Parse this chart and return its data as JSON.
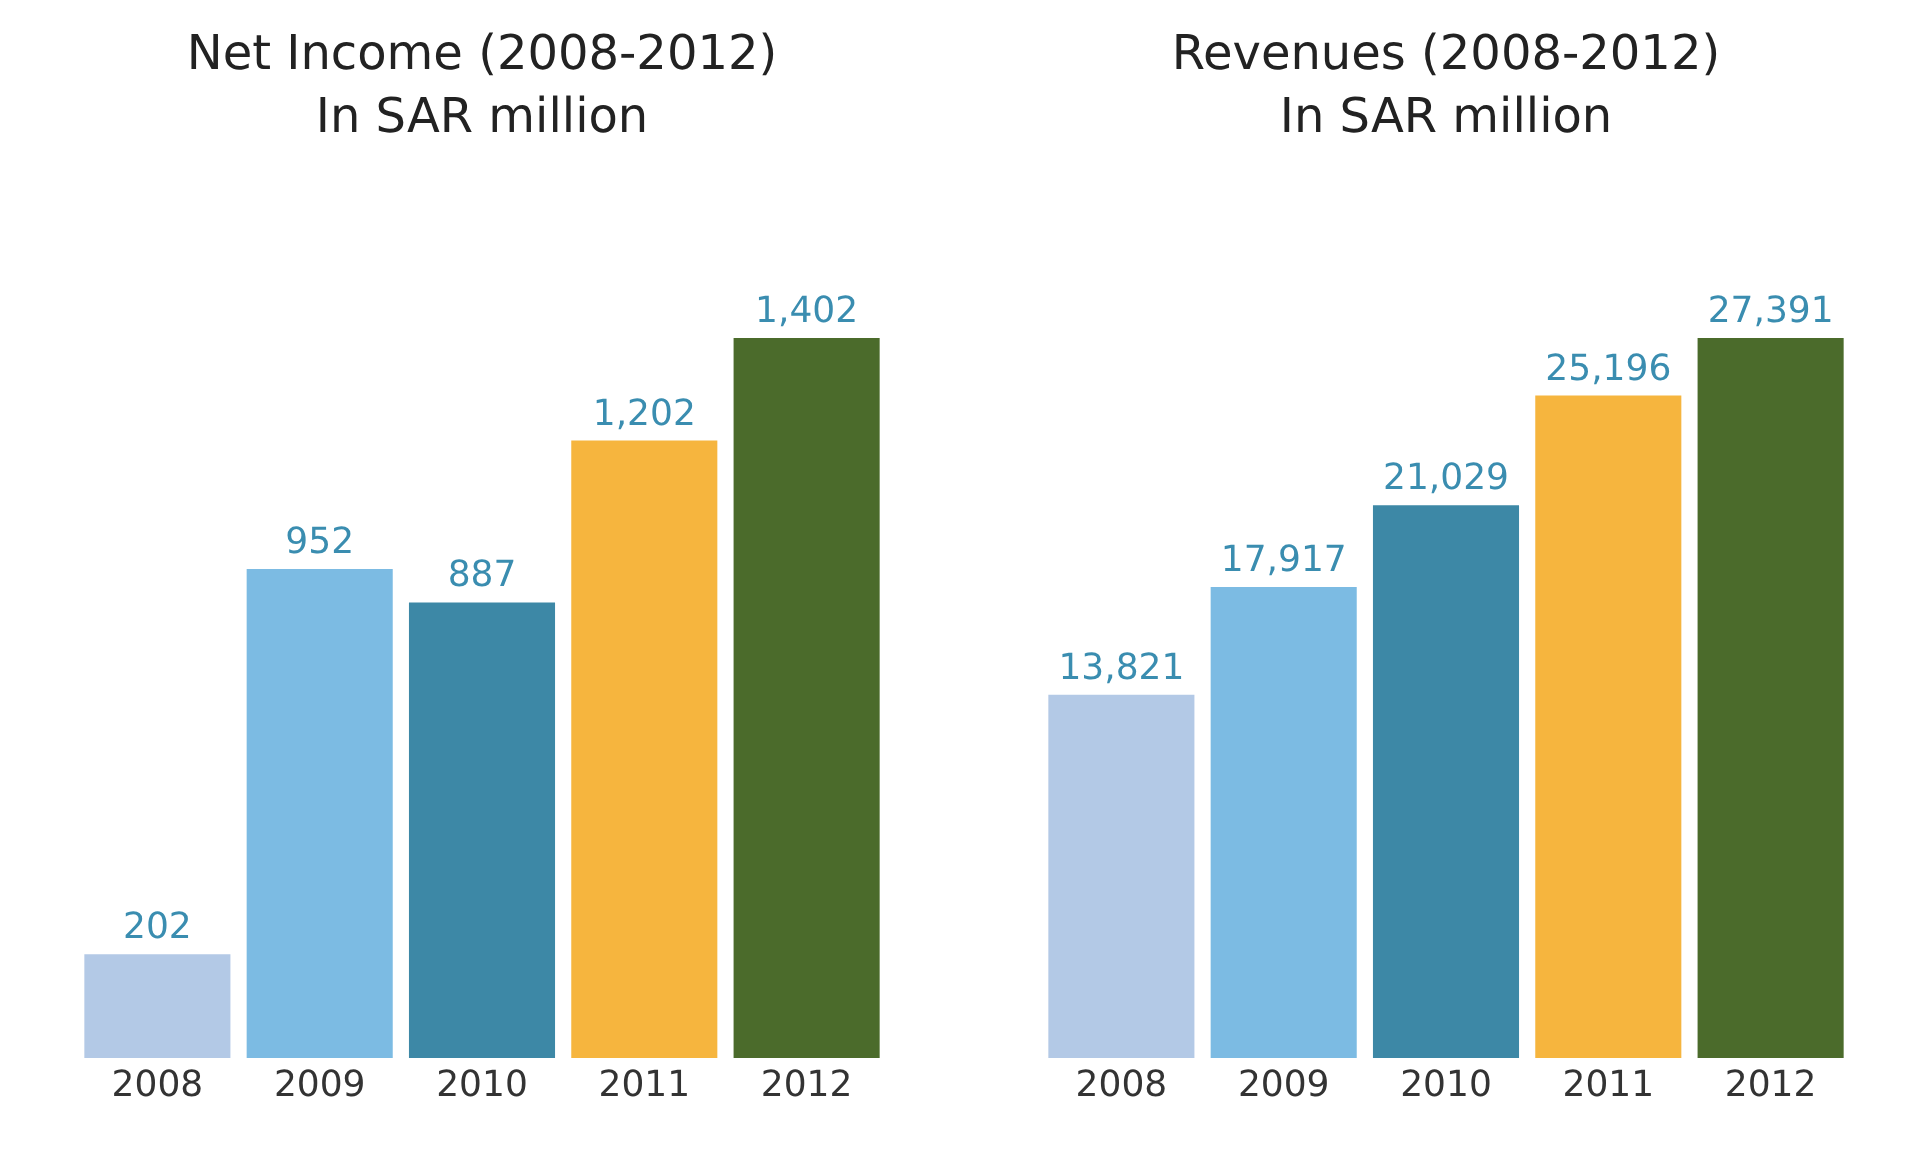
{
  "chart_data": [
    {
      "type": "bar",
      "title": "Net Income (2008-2012)",
      "subtitle": "In SAR million",
      "categories": [
        "2008",
        "2009",
        "2010",
        "2011",
        "2012"
      ],
      "values": [
        202,
        952,
        887,
        1202,
        1402
      ],
      "colors": [
        "#b3c9e6",
        "#7cbbe3",
        "#3d88a6",
        "#f6b53e",
        "#4b6b2b"
      ],
      "value_labels": [
        "202",
        "952",
        "887",
        "1,202",
        "1,402"
      ]
    },
    {
      "type": "bar",
      "title": "Revenues (2008-2012)",
      "subtitle": "In SAR million",
      "categories": [
        "2008",
        "2009",
        "2010",
        "2011",
        "2012"
      ],
      "values": [
        13821,
        17917,
        21029,
        25196,
        27391
      ],
      "colors": [
        "#b3c9e6",
        "#7cbbe3",
        "#3d88a6",
        "#f6b53e",
        "#4b6b2b"
      ],
      "value_labels": [
        "13,821",
        "17,917",
        "21,029",
        "25,196",
        "27,391"
      ]
    }
  ]
}
